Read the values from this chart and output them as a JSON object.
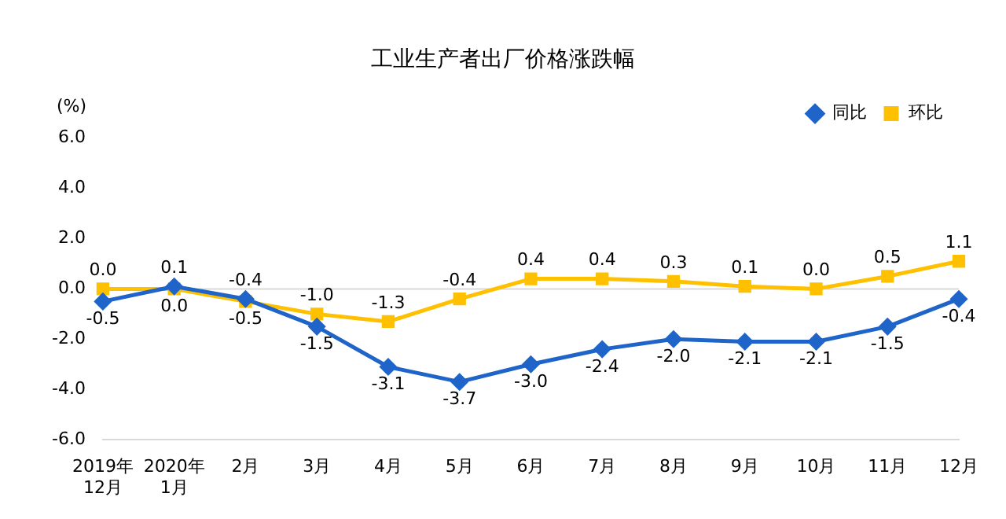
{
  "chart_data": {
    "type": "line",
    "title": "工业生产者出厂价格涨跌幅",
    "ylabel": "(%)",
    "categories": [
      "2019年\n12月",
      "2020年\n1月",
      "2月",
      "3月",
      "4月",
      "5月",
      "6月",
      "7月",
      "8月",
      "9月",
      "10月",
      "11月",
      "12月"
    ],
    "series": [
      {
        "name": "同比",
        "color": "#1f64c8",
        "marker": "diamond",
        "values": [
          -0.5,
          0.1,
          -0.4,
          -1.5,
          -3.1,
          -3.7,
          -3.0,
          -2.4,
          -2.0,
          -2.1,
          -2.1,
          -1.5,
          -0.4
        ],
        "value_labels": [
          "-0.5",
          "0.1",
          "-0.4",
          "-1.5",
          "-3.1",
          "-3.7",
          "-3.0",
          "-2.4",
          "-2.0",
          "-2.1",
          "-2.1",
          "-1.5",
          "-0.4"
        ]
      },
      {
        "name": "环比",
        "color": "#ffc000",
        "marker": "square",
        "values": [
          0.0,
          0.0,
          -0.5,
          -1.0,
          -1.3,
          -0.4,
          0.4,
          0.4,
          0.3,
          0.1,
          0.0,
          0.5,
          1.1
        ],
        "value_labels": [
          "0.0",
          "0.0",
          "-0.5",
          "-1.0",
          "-1.3",
          "-0.4",
          "0.4",
          "0.4",
          "0.3",
          "0.1",
          "0.0",
          "0.5",
          "1.1"
        ]
      }
    ],
    "ylim": [
      -6,
      6
    ],
    "yticks": [
      {
        "value": -6,
        "label": "-6.0"
      },
      {
        "value": -4,
        "label": "-4.0"
      },
      {
        "value": -2,
        "label": "-2.0"
      },
      {
        "value": 0,
        "label": "0.0"
      },
      {
        "value": 2,
        "label": "2.0"
      },
      {
        "value": 4,
        "label": "4.0"
      },
      {
        "value": 6,
        "label": "6.0"
      }
    ],
    "ref_lines": [
      {
        "axis": "y",
        "value": 0,
        "color": "#d9d9d9"
      }
    ],
    "legend": "top right",
    "grid": false,
    "line_style": "solid"
  }
}
